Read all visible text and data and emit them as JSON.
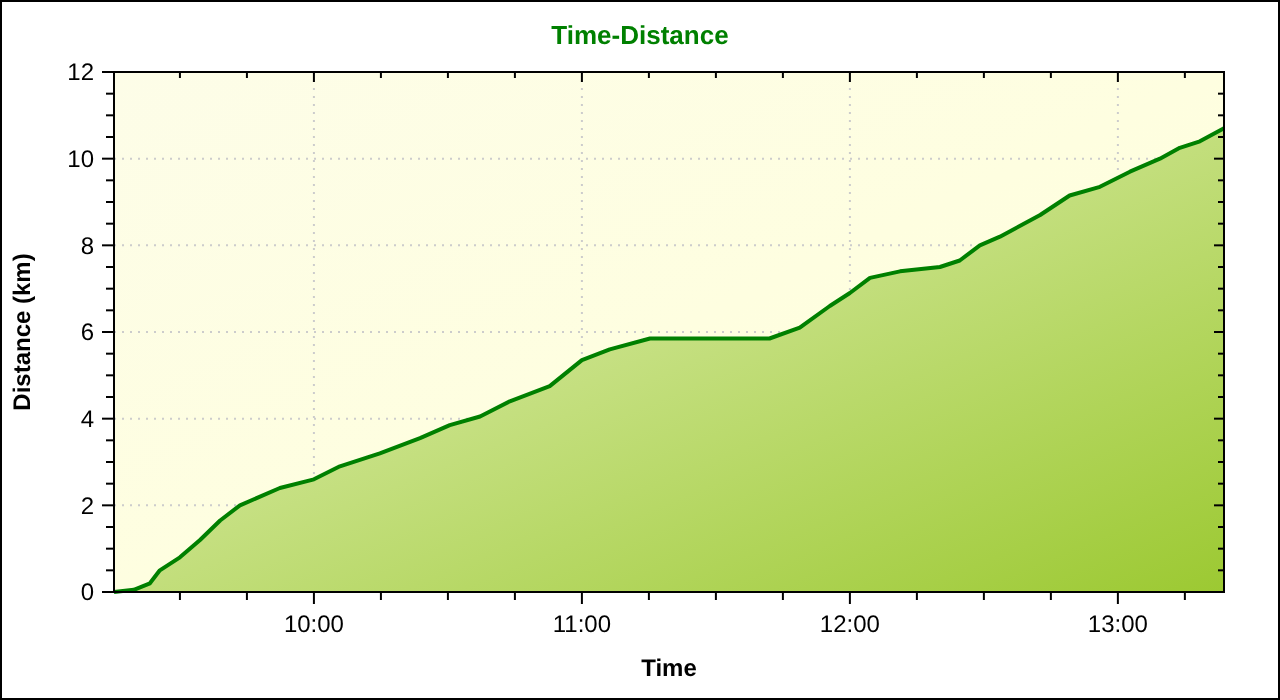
{
  "chart_data": {
    "type": "area",
    "title": "Time-Distance",
    "xlabel": "Time",
    "ylabel": "Distance (km)",
    "x": [
      9.254,
      9.328,
      9.388,
      9.425,
      9.5,
      9.575,
      9.65,
      9.724,
      9.873,
      10.0,
      10.097,
      10.246,
      10.396,
      10.507,
      10.62,
      10.731,
      10.88,
      11.0,
      11.104,
      11.254,
      11.7,
      11.813,
      11.925,
      12.0,
      12.075,
      12.187,
      12.336,
      12.41,
      12.485,
      12.56,
      12.71,
      12.82,
      12.933,
      13.045,
      13.157,
      13.231,
      13.306,
      13.396
    ],
    "series": [
      {
        "color": "#008000",
        "values": [
          0,
          0.05,
          0.2,
          0.5,
          0.8,
          1.2,
          1.65,
          2.0,
          2.4,
          2.6,
          2.9,
          3.2,
          3.55,
          3.85,
          4.05,
          4.4,
          4.75,
          5.35,
          5.6,
          5.85,
          5.85,
          6.1,
          6.6,
          6.9,
          7.25,
          7.4,
          7.5,
          7.65,
          8.0,
          8.2,
          8.7,
          9.15,
          9.35,
          9.7,
          10.0,
          10.25,
          10.4,
          10.7
        ]
      }
    ],
    "xlim": [
      9.254,
      13.396
    ],
    "xticks": [
      {
        "value": 9.5,
        "label": null
      },
      {
        "value": 9.75,
        "label": null
      },
      {
        "value": 10,
        "label": "10:00"
      },
      {
        "value": 10.25,
        "label": null
      },
      {
        "value": 10.5,
        "label": null
      },
      {
        "value": 10.75,
        "label": null
      },
      {
        "value": 11,
        "label": "11:00"
      },
      {
        "value": 11.25,
        "label": null
      },
      {
        "value": 11.5,
        "label": null
      },
      {
        "value": 11.75,
        "label": null
      },
      {
        "value": 12,
        "label": "12:00"
      },
      {
        "value": 12.25,
        "label": null
      },
      {
        "value": 12.5,
        "label": null
      },
      {
        "value": 12.75,
        "label": null
      },
      {
        "value": 13,
        "label": "13:00"
      },
      {
        "value": 13.25,
        "label": null
      }
    ],
    "ylim": [
      0,
      12
    ],
    "yticks": [
      0,
      {
        "value": 0.5,
        "label": null
      },
      {
        "value": 1,
        "label": null
      },
      {
        "value": 1.5,
        "label": null
      },
      2,
      {
        "value": 2.5,
        "label": null
      },
      {
        "value": 3,
        "label": null
      },
      {
        "value": 3.5,
        "label": null
      },
      4,
      {
        "value": 4.5,
        "label": null
      },
      {
        "value": 5,
        "label": null
      },
      {
        "value": 5.5,
        "label": null
      },
      6,
      {
        "value": 6.5,
        "label": null
      },
      {
        "value": 7,
        "label": null
      },
      {
        "value": 7.5,
        "label": null
      },
      8,
      {
        "value": 8.5,
        "label": null
      },
      {
        "value": 9,
        "label": null
      },
      {
        "value": 9.5,
        "label": null
      },
      10,
      {
        "value": 10.5,
        "label": null
      },
      {
        "value": 11,
        "label": null
      },
      {
        "value": 11.5,
        "label": null
      },
      12
    ],
    "grid": true,
    "marker": "none",
    "line_style": "solid"
  }
}
